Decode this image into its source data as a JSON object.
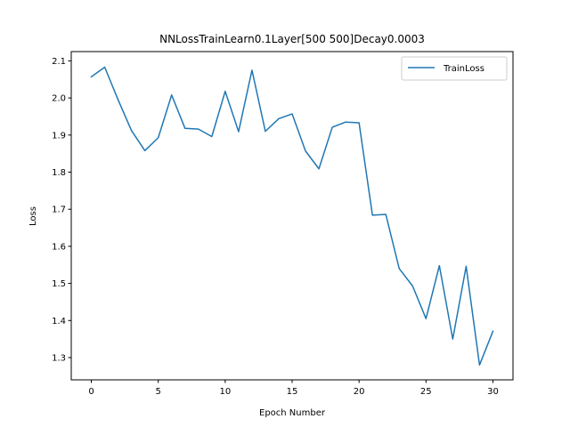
{
  "chart_data": {
    "type": "line",
    "title": "NNLossTrainLearn0.1Layer[500 500]Decay0.0003",
    "xlabel": "Epoch Number",
    "ylabel": "Loss",
    "xlim": [
      -1.5,
      31.5
    ],
    "ylim": [
      1.24,
      2.125
    ],
    "xticks": [
      0,
      5,
      10,
      15,
      20,
      25,
      30
    ],
    "yticks": [
      1.3,
      1.4,
      1.5,
      1.6,
      1.7,
      1.8,
      1.9,
      2.0,
      2.1
    ],
    "grid": false,
    "legend_position": "top-right",
    "series": [
      {
        "name": "TrainLoss",
        "color": "#1f77b4",
        "x": [
          0,
          1,
          2,
          3,
          4,
          5,
          6,
          7,
          8,
          9,
          10,
          11,
          12,
          13,
          14,
          15,
          16,
          17,
          18,
          19,
          20,
          21,
          22,
          23,
          24,
          25,
          26,
          27,
          28,
          29,
          30
        ],
        "y": [
          2.057,
          2.083,
          1.995,
          1.912,
          1.858,
          1.893,
          2.008,
          1.918,
          1.916,
          1.896,
          2.018,
          1.909,
          2.075,
          1.91,
          1.944,
          1.957,
          1.857,
          1.809,
          1.921,
          1.935,
          1.933,
          1.684,
          1.686,
          1.54,
          1.493,
          1.405,
          1.548,
          1.35,
          1.546,
          1.28,
          1.371
        ]
      }
    ]
  }
}
